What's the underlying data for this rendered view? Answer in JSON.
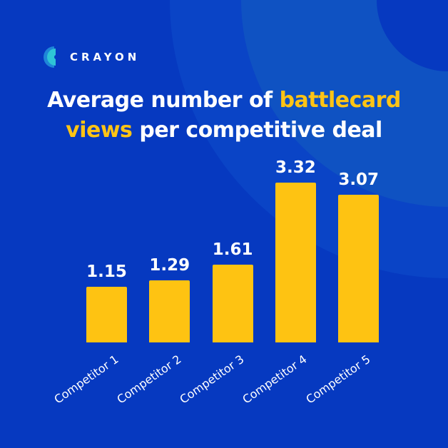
{
  "brand": {
    "name": "CRAYON",
    "logo_icon": "crayon-logo-icon",
    "colors": {
      "background": "#0639c0",
      "accent": "#ffc414",
      "bar": "#fec312",
      "text": "#ffffff",
      "logo_teal": "#2ec4d6"
    }
  },
  "title": {
    "part1": "Average number of ",
    "highlight1": "battlecard",
    "highlight2": "views",
    "part2": " per competitive deal"
  },
  "chart_data": {
    "type": "bar",
    "title": "Average number of battlecard views per competitive deal",
    "categories": [
      "Competitor 1",
      "Competitor 2",
      "Competitor 3",
      "Competitor 4",
      "Competitor 5"
    ],
    "values": [
      1.15,
      1.29,
      1.61,
      3.32,
      3.07
    ],
    "value_labels": [
      "1.15",
      "1.29",
      "1.61",
      "3.32",
      "3.07"
    ],
    "xlabel": "",
    "ylabel": "",
    "ylim": [
      0,
      3.5
    ],
    "grid": false,
    "legend": null,
    "x_tick_rotation": -35
  }
}
